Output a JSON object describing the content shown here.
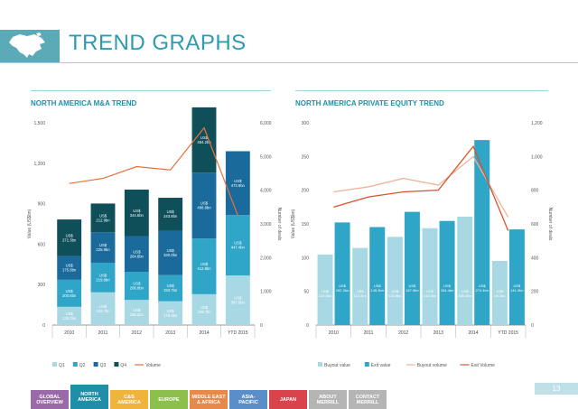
{
  "page": {
    "title": "TREND GRAPHS",
    "page_number": "13",
    "colors": {
      "brand": "#2f9bb0",
      "rule": "#9fd3dc"
    }
  },
  "nav": [
    {
      "label": "GLOBAL OVERVIEW",
      "lines": [
        "GLOBAL",
        "OVERVIEW"
      ],
      "color": "#9a6aa8"
    },
    {
      "label": "NORTH AMERICA",
      "lines": [
        "NORTH",
        "AMERICA"
      ],
      "color": "#1f8fa8",
      "active": true
    },
    {
      "label": "C&S AMERICA",
      "lines": [
        "C&S",
        "AMERICA"
      ],
      "color": "#f0b43c"
    },
    {
      "label": "EUROPE",
      "lines": [
        "EUROPE"
      ],
      "color": "#8cc04a"
    },
    {
      "label": "MIDDLE EAST & AFRICA",
      "lines": [
        "MIDDLE EAST",
        "& AFRICA"
      ],
      "color": "#e8894a"
    },
    {
      "label": "ASIA-PACIFIC",
      "lines": [
        "ASIA-",
        "PACIFIC"
      ],
      "color": "#5a8ec8"
    },
    {
      "label": "JAPAN",
      "lines": [
        "JAPAN"
      ],
      "color": "#d9434c"
    },
    {
      "label": "ABOUT MERRILL",
      "lines": [
        "ABOUT",
        "MERRILL"
      ],
      "color": "#b5b5b5"
    },
    {
      "label": "CONTACT MERRILL",
      "lines": [
        "CONTACT",
        "MERRILL"
      ],
      "color": "#b5b5b5"
    }
  ],
  "chart_data": [
    {
      "type": "bar",
      "title": "NORTH AMERICA M&A TREND",
      "categories": [
        "2010",
        "2011",
        "2012",
        "2013",
        "2014",
        "YTD 2015"
      ],
      "ylabel": "Value (US$bn)",
      "y2label": "Number of deals",
      "ylim": [
        0,
        1500
      ],
      "y2lim": [
        0,
        6000
      ],
      "yticks": [
        "0",
        "300",
        "600",
        "900",
        "1,200",
        "1,500"
      ],
      "y2ticks": [
        "0",
        "1,000",
        "2,000",
        "3,000",
        "4,000",
        "5,000",
        "6,000"
      ],
      "stacked": true,
      "series": [
        {
          "name": "Q1",
          "color": "#a8d8e3",
          "values": [
            135.2,
            242.7,
            186.3,
            176.4,
            228.7,
            367.9
          ],
          "labels": [
            "US$ 135.2bn",
            "US$ 242.7bn",
            "US$ 186.3bn",
            "US$ 176.4bn",
            "US$ 228.7bn",
            "US$ 367.9bn"
          ]
        },
        {
          "name": "Q2",
          "color": "#2fa6c8",
          "values": [
            200.6,
            219.6,
            208.6,
            193.7,
            412.8,
            447.4
          ],
          "labels": [
            "US$ 200.6bn",
            "US$ 219.6bn",
            "US$ 208.6bn",
            "US$ 193.7bn",
            "US$ 412.8bn",
            "US$ 447.4bn"
          ]
        },
        {
          "name": "Q3",
          "color": "#1a6b9c",
          "values": [
            175.8,
            225.9,
            264.8,
            330.0,
            488.8,
            473.9
          ],
          "labels": [
            "US$ 175.8bn",
            "US$ 225.9bn",
            "US$ 264.8bn",
            "US$ 330.0bn",
            "US$ 488.8bn",
            "US$ 473.9bn"
          ]
        },
        {
          "name": "Q4",
          "color": "#0f4f5a",
          "values": [
            271.3,
            212.9,
            344.6,
            243.8,
            484.2,
            0
          ],
          "labels": [
            "US$ 271.3bn",
            "US$ 212.9bn",
            "US$ 344.6bn",
            "US$ 243.8bn",
            "US$ 484.2bn",
            ""
          ]
        },
        {
          "name": "Volume",
          "type": "line",
          "axis": "y2",
          "color": "#e8703c",
          "values": [
            4200,
            4350,
            4700,
            4600,
            5850,
            3250
          ]
        }
      ],
      "legend": [
        "Q1",
        "Q2",
        "Q3",
        "Q4",
        "Volume"
      ],
      "legend_position": "bottom-left"
    },
    {
      "type": "bar",
      "title": "NORTH AMERICA PRIVATE EQUITY TREND",
      "categories": [
        "2010",
        "2011",
        "2012",
        "2013",
        "2014",
        "YTD 2015"
      ],
      "ylabel": "Value (US$bn)",
      "y2label": "Number of deals",
      "ylim": [
        0,
        300
      ],
      "y2lim": [
        0,
        1200
      ],
      "yticks": [
        "0",
        "50",
        "100",
        "150",
        "200",
        "250",
        "300"
      ],
      "y2ticks": [
        "0",
        "200",
        "400",
        "600",
        "800",
        "1,000",
        "1,200"
      ],
      "series": [
        {
          "name": "Buyout value",
          "color": "#a8d8e3",
          "values": [
            104.6,
            114.3,
            130.8,
            143.6,
            160.8,
            95.1
          ],
          "labels": [
            "US$ 104.6bn",
            "US$ 114.3bn",
            "US$ 130.8bn",
            "US$ 143.6bn",
            "US$ 160.8bn",
            "US$ 95.1bn"
          ]
        },
        {
          "name": "Exit value",
          "color": "#2fa6c8",
          "values": [
            152.2,
            145.3,
            167.9,
            154.4,
            274.4,
            141.9
          ],
          "labels": [
            "US$ 152.2bn",
            "US$ 145.3bn",
            "US$ 167.9bn",
            "US$ 154.4bn",
            "US$ 274.4bn",
            "US$ 141.9bn"
          ]
        },
        {
          "name": "Buyout volume",
          "type": "line",
          "axis": "y2",
          "color": "#f0b49a",
          "values": [
            790,
            820,
            870,
            830,
            1000,
            640
          ]
        },
        {
          "name": "Exit Volume",
          "type": "line",
          "axis": "y2",
          "color": "#d9532c",
          "values": [
            700,
            760,
            790,
            800,
            1060,
            560
          ]
        }
      ],
      "legend": [
        "Buyout value",
        "Exit value",
        "Buyout volume",
        "Exit Volume"
      ],
      "legend_position": "bottom-left"
    }
  ]
}
